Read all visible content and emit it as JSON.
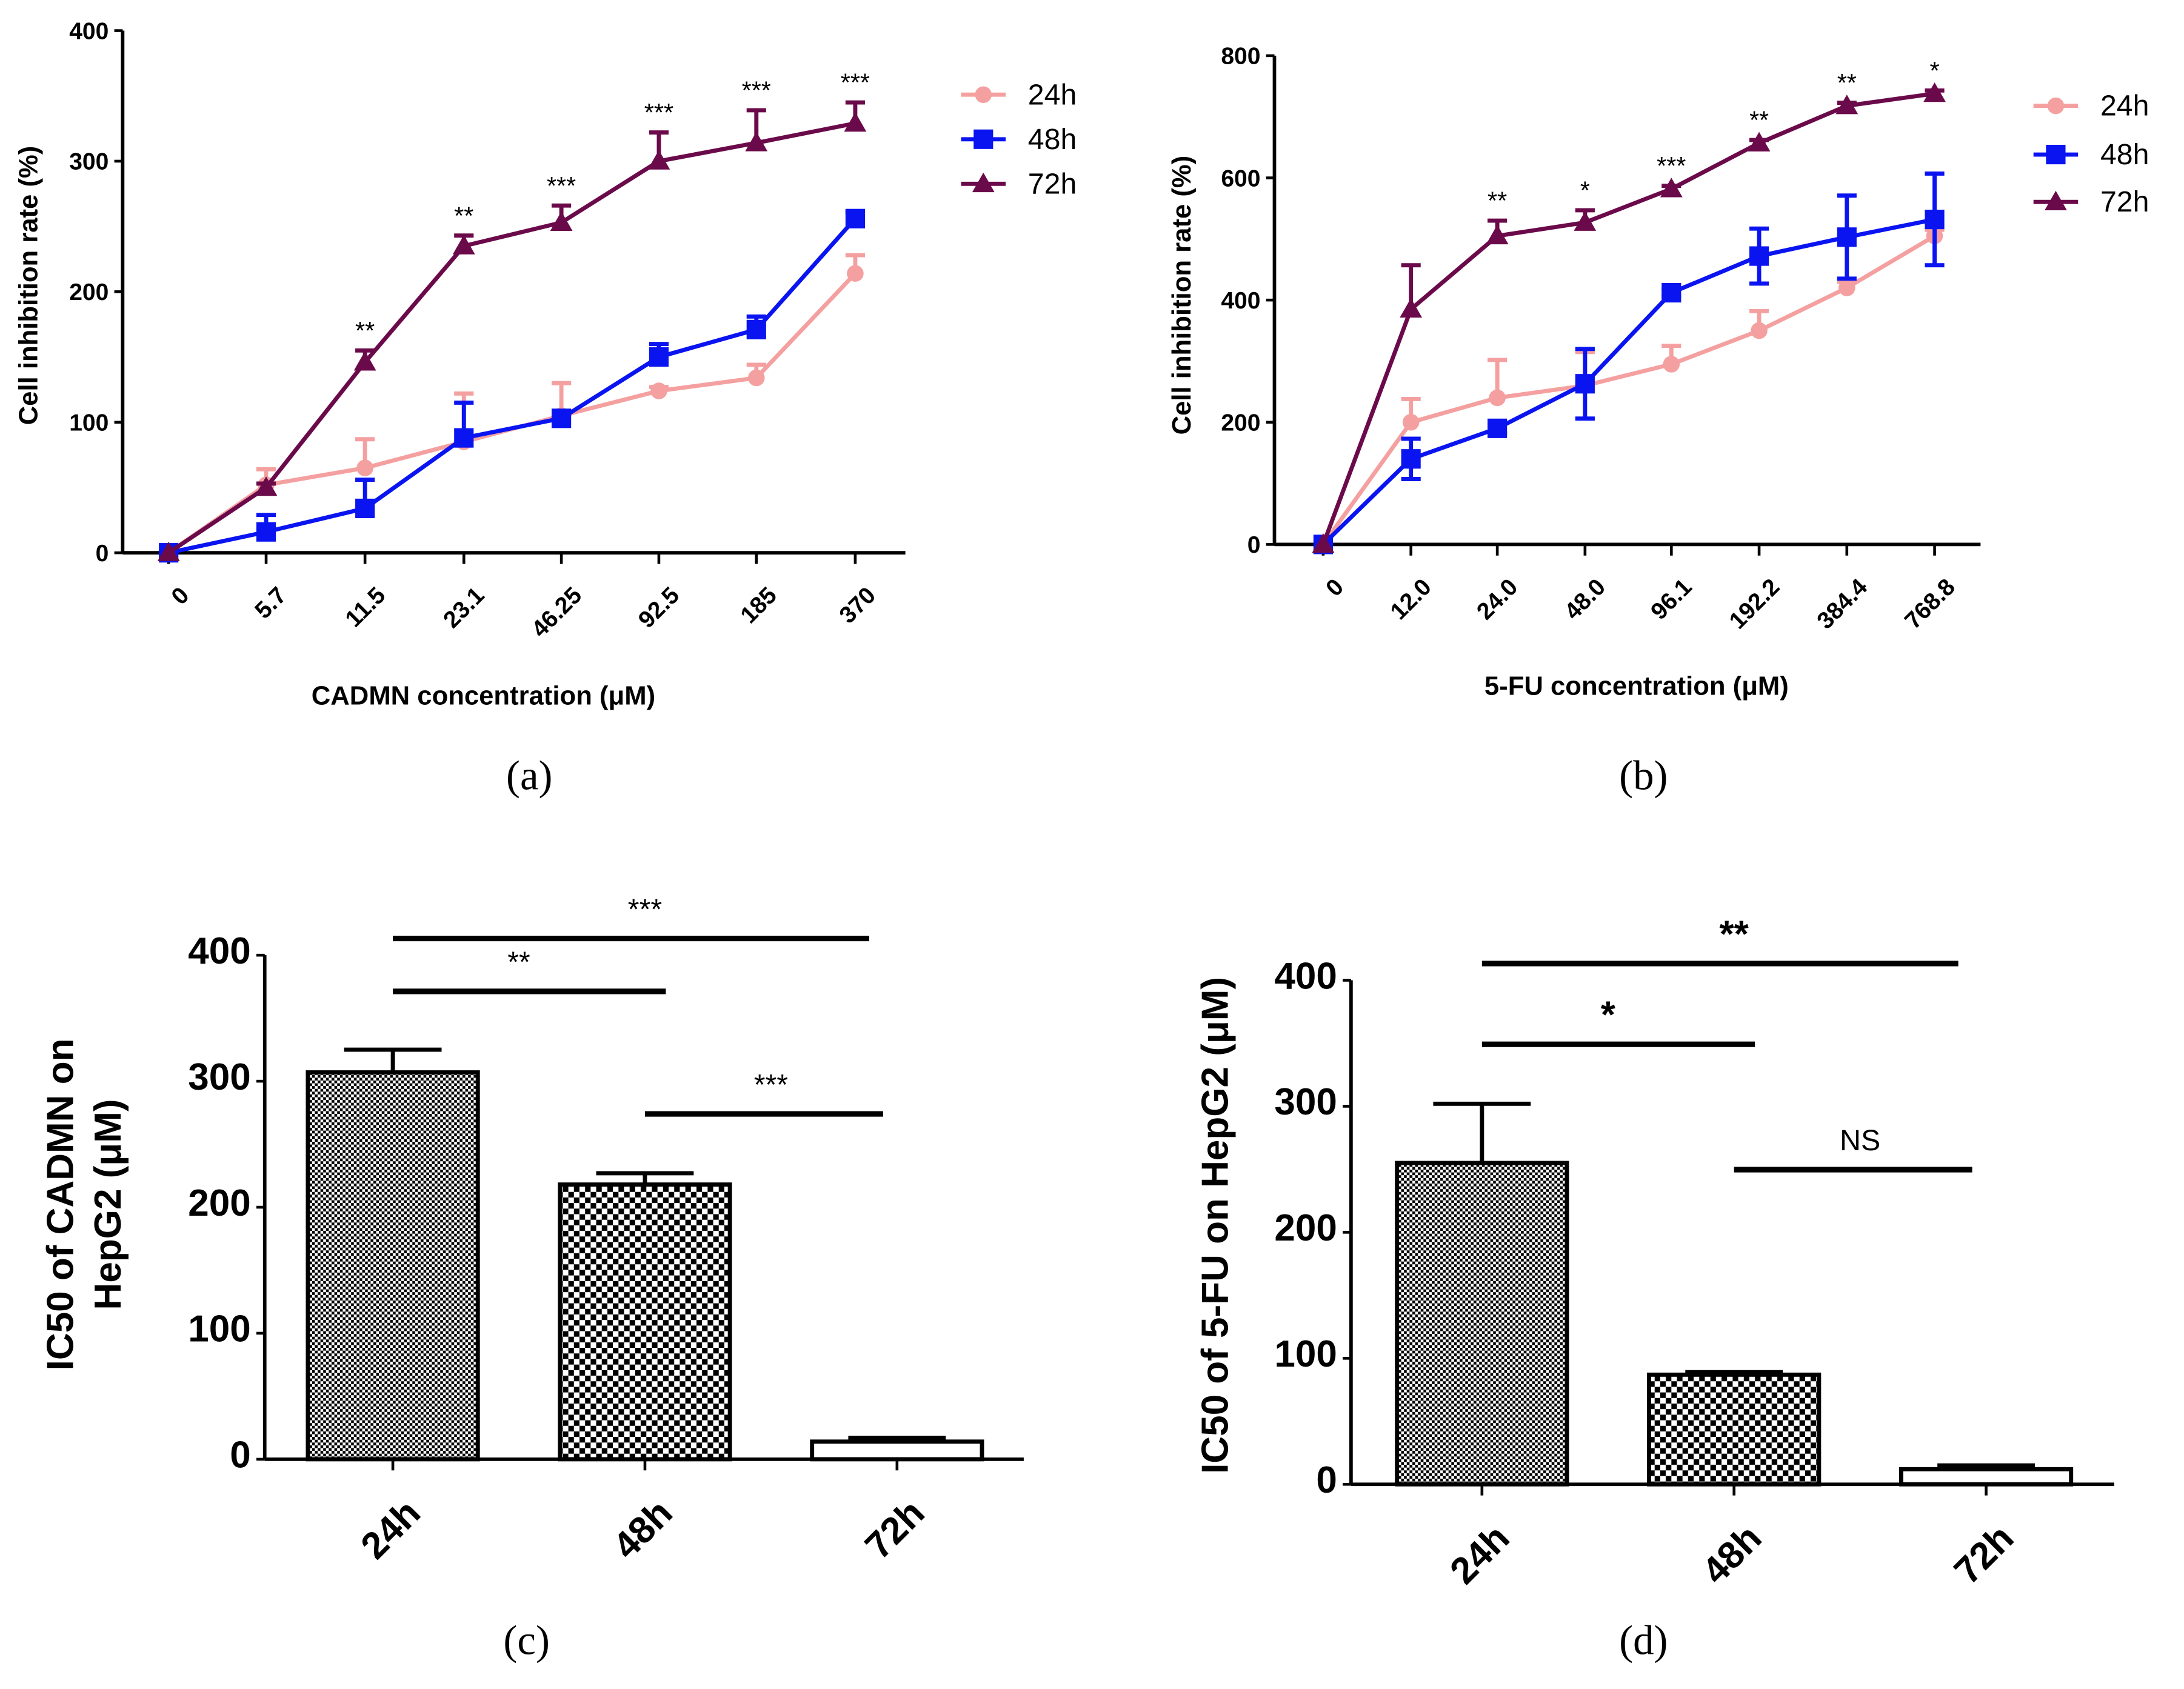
{
  "colors": {
    "24h": "#f5a0a0",
    "48h": "#0a14f0",
    "72h": "#6b0a4a"
  },
  "chart_data": [
    {
      "type": "line",
      "panel": "(a)",
      "xlabel": "CADMN concentration (μM)",
      "ylabel": "Cell inhibition rate (%)",
      "ylim": [
        0,
        400
      ],
      "yticks": [
        0,
        100,
        200,
        300,
        400
      ],
      "categories": [
        "0",
        "5.7",
        "11.5",
        "23.1",
        "46.25",
        "92.5",
        "185",
        "370"
      ],
      "series": [
        {
          "name": "24h",
          "values": [
            0,
            52,
            65,
            85,
            105,
            124,
            134,
            214
          ],
          "errors": [
            0,
            12,
            22,
            37,
            25,
            3,
            10,
            14
          ]
        },
        {
          "name": "48h",
          "values": [
            0,
            16,
            34,
            88,
            103,
            150,
            171,
            256
          ],
          "errors": [
            0,
            13,
            22,
            27,
            3,
            10,
            10,
            5
          ]
        },
        {
          "name": "72h",
          "values": [
            0,
            50,
            146,
            235,
            253,
            300,
            314,
            329
          ],
          "errors": [
            0,
            3,
            9,
            8,
            13,
            22,
            25,
            16
          ]
        }
      ],
      "significance": [
        "",
        "",
        "**",
        "**",
        "***",
        "***",
        "***",
        "***"
      ],
      "legend": "right"
    },
    {
      "type": "line",
      "panel": "(b)",
      "xlabel": "5-FU concentration (μM)",
      "ylabel": "Cell inhibition rate (%)",
      "ylim": [
        0,
        800
      ],
      "yticks": [
        0,
        200,
        400,
        600,
        800
      ],
      "categories": [
        "0",
        "12.0",
        "24.0",
        "48.0",
        "96.1",
        "192.2",
        "384.4",
        "768.8"
      ],
      "series": [
        {
          "name": "24h",
          "values": [
            0,
            200,
            240,
            260,
            295,
            350,
            420,
            505
          ],
          "errors": [
            0,
            38,
            62,
            55,
            30,
            32,
            10,
            10
          ]
        },
        {
          "name": "48h",
          "values": [
            0,
            140,
            190,
            263,
            412,
            472,
            503,
            532
          ],
          "errors": [
            0,
            33,
            8,
            57,
            5,
            45,
            68,
            75
          ]
        },
        {
          "name": "72h",
          "values": [
            0,
            385,
            505,
            527,
            582,
            657,
            718,
            738
          ],
          "errors": [
            0,
            72,
            25,
            20,
            5,
            5,
            5,
            5
          ]
        }
      ],
      "significance": [
        "",
        "",
        "**",
        "*",
        "***",
        "**",
        "**",
        "*"
      ],
      "legend": "right"
    },
    {
      "type": "bar",
      "panel": "(c)",
      "ylabel": [
        "IC50 of CADMN on",
        "HepG2 (μM)"
      ],
      "ylim": [
        0,
        400
      ],
      "yticks": [
        0,
        100,
        200,
        300,
        400
      ],
      "categories": [
        "24h",
        "48h",
        "72h"
      ],
      "values": [
        307,
        218,
        14
      ],
      "errors": [
        18,
        9,
        3
      ],
      "brackets": [
        {
          "from": 0,
          "to": 2,
          "label": "***"
        },
        {
          "from": 0,
          "to": 1,
          "label": "**"
        },
        {
          "from": 1,
          "to": 2,
          "label": "***"
        }
      ]
    },
    {
      "type": "bar",
      "panel": "(d)",
      "ylabel": [
        "IC50 of 5-FU on HepG2 (μM)"
      ],
      "ylim": [
        0,
        400
      ],
      "yticks": [
        0,
        100,
        200,
        300,
        400
      ],
      "categories": [
        "24h",
        "48h",
        "72h"
      ],
      "values": [
        255,
        87,
        12
      ],
      "errors": [
        47,
        2,
        3
      ],
      "brackets": [
        {
          "from": 0,
          "to": 2,
          "label": "**"
        },
        {
          "from": 0,
          "to": 1,
          "label": "*"
        },
        {
          "from": 1,
          "to": 2,
          "label": "NS"
        }
      ]
    }
  ]
}
